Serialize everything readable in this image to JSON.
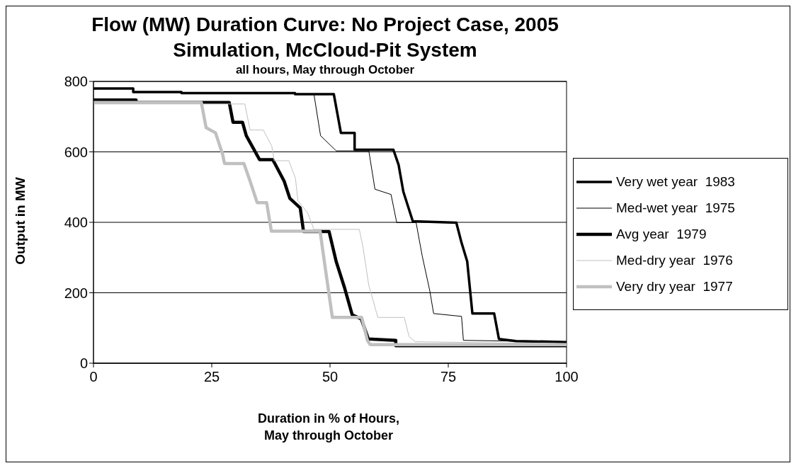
{
  "chart_data": {
    "type": "line",
    "title": "Flow (MW) Duration Curve: No Project Case, 2005\nSimulation, McCloud-Pit System",
    "subtitle": "all hours, May through October",
    "xlabel": "Duration in % of Hours,\nMay through October",
    "ylabel": "Output in MW",
    "xlim": [
      0,
      100
    ],
    "xticks": [
      0,
      25,
      50,
      75,
      100
    ],
    "ylim": [
      0,
      800
    ],
    "yticks": [
      0,
      200,
      400,
      600,
      800
    ],
    "grid": "y",
    "legend": "right",
    "marker": "none",
    "line_style": "solid",
    "series": [
      {
        "name": "Very wet year  1983",
        "color": "#000000",
        "x": [
          0,
          8.4,
          8.4,
          18.6,
          18.6,
          42.6,
          42.6,
          50.8,
          52.3,
          55.2,
          55.2,
          63.4,
          64.5,
          65.5,
          67.5,
          76.7,
          77.8,
          79.0,
          80.1,
          84.7,
          85.7,
          89.3,
          100
        ],
        "values": [
          780,
          780,
          770,
          770,
          767,
          767,
          764,
          764,
          654,
          654,
          606,
          606,
          563,
          487,
          403,
          399,
          342,
          289,
          141,
          141,
          69,
          63,
          60
        ]
      },
      {
        "name": "Med-wet year  1975",
        "color": "#000000",
        "x": [
          0,
          8.4,
          8.4,
          18.6,
          18.6,
          42.6,
          42.6,
          46.6,
          48.0,
          51.3,
          58.2,
          59.5,
          62.9,
          64.1,
          68.2,
          69.5,
          71.1,
          71.9,
          77.8,
          78.2,
          100
        ],
        "values": [
          780,
          780,
          770,
          770,
          767,
          767,
          764,
          764,
          646,
          603,
          603,
          494,
          479,
          399,
          399,
          304,
          205,
          141,
          133,
          65,
          60
        ]
      },
      {
        "name": "Avg year  1979",
        "color": "#000000",
        "x": [
          0,
          9,
          9,
          28.7,
          29.5,
          31.5,
          32.3,
          35.1,
          37.9,
          40.3,
          41.5,
          43.7,
          44.4,
          49.8,
          51.3,
          53.1,
          54.7,
          56.6,
          58.1,
          63.9,
          63.9,
          100
        ],
        "values": [
          747,
          747,
          740,
          740,
          684,
          684,
          646,
          578,
          578,
          517,
          468,
          441,
          374,
          374,
          289,
          213,
          137,
          126,
          69,
          65,
          50,
          50
        ]
      },
      {
        "name": "Med-dry year  1976",
        "color": "#c0c0c0",
        "x": [
          0,
          32.0,
          33.1,
          35.9,
          37.7,
          38.2,
          41.3,
          42.7,
          43.2,
          45.3,
          46.6,
          56.2,
          57.0,
          58.2,
          59.8,
          60.1,
          65.7,
          66.7,
          68.0,
          100
        ],
        "values": [
          736,
          736,
          662,
          662,
          616,
          575,
          575,
          525,
          462,
          426,
          380,
          380,
          327,
          221,
          145,
          130,
          130,
          76,
          61,
          55
        ]
      },
      {
        "name": "Very dry year  1977",
        "color": "#c0c0c0",
        "x": [
          0,
          22.8,
          23.8,
          25.8,
          27.3,
          27.7,
          31.8,
          33.1,
          34.6,
          36.6,
          37.6,
          47.9,
          49.2,
          50.5,
          56.7,
          57.9,
          58.5,
          100
        ],
        "values": [
          740,
          740,
          669,
          654,
          593,
          567,
          567,
          517,
          456,
          456,
          375,
          375,
          251,
          130,
          130,
          65,
          53,
          53
        ]
      }
    ]
  }
}
